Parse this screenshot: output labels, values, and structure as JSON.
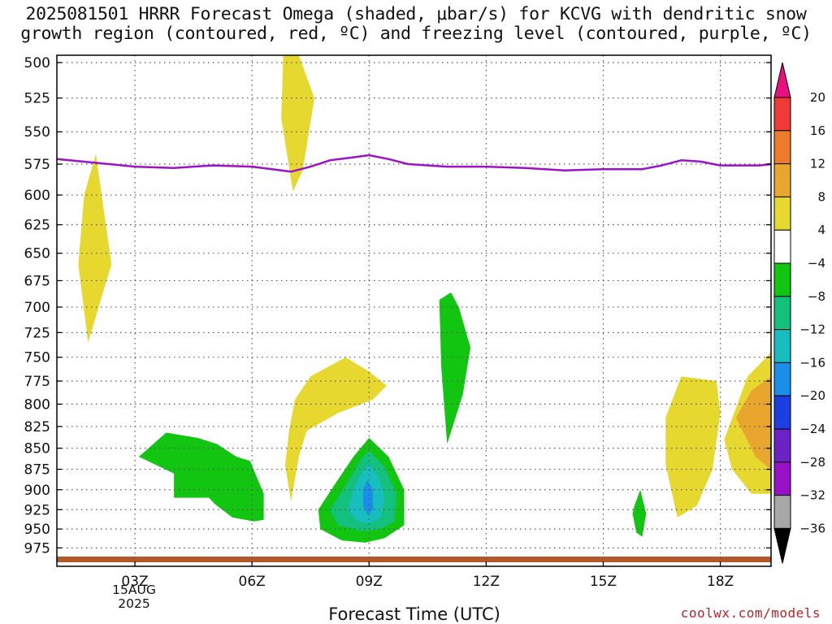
{
  "title_line1": "2025081501 HRRR Forecast Omega (shaded, μbar/s) for KCVG with dendritic snow",
  "title_line2": "growth region (contoured, red, ºC) and freezing level (contoured, purple, ºC)",
  "xlabel": "Forecast Time (UTC)",
  "credit": "coolwx.com/models",
  "date_label": [
    "15AUG",
    "2025"
  ],
  "chart_data": {
    "type": "contour",
    "title": "2025081501 HRRR Forecast Omega (shaded, μbar/s) for KCVG with dendritic snow growth region (contoured, red, ºC) and freezing level (contoured, purple, ºC)",
    "xlabel": "Forecast Time (UTC)",
    "ylabel": "",
    "x_units": "hours UTC on 15 Aug 2025",
    "xlim": [
      1,
      19.3
    ],
    "ylim": [
      1000,
      495
    ],
    "y_scale": "log (pressure, increasing downward)",
    "grid": true,
    "xticks": [
      {
        "x": 3,
        "label": "03Z"
      },
      {
        "x": 6,
        "label": "06Z"
      },
      {
        "x": 9,
        "label": "09Z"
      },
      {
        "x": 12,
        "label": "12Z"
      },
      {
        "x": 15,
        "label": "15Z"
      },
      {
        "x": 18,
        "label": "18Z"
      }
    ],
    "yticks": [
      500,
      525,
      550,
      575,
      600,
      625,
      650,
      675,
      700,
      725,
      750,
      775,
      800,
      825,
      850,
      875,
      900,
      925,
      950,
      975
    ],
    "colorbar": {
      "levels": [
        "20",
        "16",
        "12",
        "8",
        "4",
        "−4",
        "−8",
        "−12",
        "−16",
        "−20",
        "−24",
        "−28",
        "−32",
        "−36"
      ],
      "colors": [
        {
          "range": ">20",
          "color": "#e6117e"
        },
        {
          "range": "16 to 20",
          "color": "#f03a38"
        },
        {
          "range": "12 to 16",
          "color": "#ee7a2b"
        },
        {
          "range": "8 to 12",
          "color": "#e9a62e"
        },
        {
          "range": "4 to 8",
          "color": "#e7d830"
        },
        {
          "range": "-4 to 4",
          "color": "#ffffff"
        },
        {
          "range": "-8 to -4",
          "color": "#12c511"
        },
        {
          "range": "-12 to -8",
          "color": "#13c07c"
        },
        {
          "range": "-16 to -12",
          "color": "#17bdbf"
        },
        {
          "range": "-20 to -16",
          "color": "#1a8ee8"
        },
        {
          "range": "-24 to -20",
          "color": "#1d3ee2"
        },
        {
          "range": "-28 to -24",
          "color": "#6d22c6"
        },
        {
          "range": "-32 to -28",
          "color": "#9a10c6"
        },
        {
          "range": "-36 to -32",
          "color": "#a7a7a7"
        },
        {
          "range": "<-36",
          "color": "#000000"
        }
      ]
    },
    "freezing_level": {
      "color": "#9b12c8",
      "x": [
        1.0,
        2.0,
        3.0,
        4.0,
        5.0,
        6.0,
        7.0,
        7.5,
        8.0,
        8.5,
        9.0,
        9.5,
        10.0,
        11.0,
        12.0,
        13.0,
        14.0,
        15.0,
        16.0,
        16.5,
        17.0,
        17.5,
        18.0,
        18.5,
        19.0,
        19.3
      ],
      "y_hPa": [
        571,
        574,
        577,
        578,
        576,
        577,
        581,
        577,
        572,
        570,
        568,
        571,
        575,
        577,
        577,
        578,
        580,
        579,
        579,
        576,
        572,
        573,
        576,
        576,
        576,
        575
      ]
    },
    "omega_regions": [
      {
        "value_class": "4 to 8",
        "color": "#e7d830",
        "x": [
          2.0,
          2.4,
          1.8,
          1.55,
          1.7,
          2.0
        ],
        "y_hPa": [
          567,
          660,
          735,
          660,
          600,
          567
        ]
      },
      {
        "value_class": "4 to 8",
        "color": "#e7d830",
        "x": [
          6.8,
          7.2,
          7.6,
          7.3,
          7.05,
          6.75,
          6.8
        ],
        "y_hPa": [
          495,
          495,
          525,
          580,
          597,
          540,
          495
        ]
      },
      {
        "value_class": "4 to 8",
        "color": "#e7d830",
        "x": [
          7.1,
          7.5,
          8.4,
          9.0,
          9.45,
          9.1,
          8.2,
          7.4,
          7.2,
          7.0,
          6.85,
          6.95,
          7.1
        ],
        "y_hPa": [
          795,
          770,
          750,
          765,
          780,
          795,
          810,
          830,
          860,
          915,
          870,
          830,
          795
        ]
      },
      {
        "value_class": "4 to 8",
        "color": "#e7d830",
        "x": [
          16.6,
          17.0,
          17.9,
          18.0,
          17.8,
          17.4,
          16.9,
          16.6,
          16.6
        ],
        "y_hPa": [
          815,
          770,
          775,
          810,
          875,
          920,
          935,
          870,
          815
        ]
      },
      {
        "value_class": "4 to 8",
        "color": "#e7d830",
        "x": [
          18.1,
          18.7,
          19.3,
          19.3,
          18.8,
          18.3,
          18.1
        ],
        "y_hPa": [
          840,
          770,
          745,
          905,
          905,
          875,
          840
        ]
      },
      {
        "value_class": "8 to 12",
        "color": "#e9a62e",
        "x": [
          18.4,
          18.8,
          19.3,
          19.3,
          18.9,
          18.4
        ],
        "y_hPa": [
          815,
          785,
          770,
          875,
          860,
          815
        ]
      },
      {
        "value_class": "-8 to -4",
        "color": "#12c511",
        "x": [
          3.1,
          3.8,
          4.6,
          5.1,
          5.6,
          5.95,
          6.3,
          6.3,
          6.05,
          5.5,
          5.05,
          4.9,
          4.0,
          4.0,
          3.1
        ],
        "y_hPa": [
          860,
          832,
          838,
          845,
          860,
          865,
          905,
          938,
          940,
          935,
          918,
          910,
          910,
          880,
          860
        ]
      },
      {
        "value_class": "-8 to -4",
        "color": "#12c511",
        "x": [
          10.8,
          11.1,
          11.3,
          11.6,
          11.4,
          11.0,
          10.85,
          10.8
        ],
        "y_hPa": [
          693,
          686,
          700,
          740,
          790,
          845,
          760,
          693
        ]
      },
      {
        "value_class": "-8 to -4",
        "color": "#12c511",
        "x": [
          15.8,
          15.95,
          16.1,
          16.0,
          15.85,
          15.75,
          15.8
        ],
        "y_hPa": [
          920,
          900,
          930,
          960,
          955,
          930,
          920
        ]
      },
      {
        "value_class": "-8 to -4",
        "color": "#12c511",
        "x": [
          9.0,
          9.5,
          9.9,
          9.9,
          9.4,
          8.9,
          8.3,
          7.75,
          7.7,
          8.1,
          8.6,
          9.0
        ],
        "y_hPa": [
          838,
          860,
          900,
          945,
          962,
          968,
          965,
          950,
          925,
          895,
          860,
          838
        ]
      },
      {
        "value_class": "-12 to -8",
        "color": "#13c07c",
        "x": [
          9.0,
          9.4,
          9.7,
          9.65,
          9.3,
          8.8,
          8.2,
          8.0,
          8.4,
          8.8,
          9.0
        ],
        "y_hPa": [
          853,
          872,
          905,
          940,
          950,
          953,
          945,
          925,
          895,
          862,
          853
        ]
      },
      {
        "value_class": "-16 to -12",
        "color": "#17bdbf",
        "x": [
          9.0,
          9.25,
          9.4,
          9.3,
          9.0,
          8.7,
          8.45,
          8.6,
          8.8,
          9.0
        ],
        "y_hPa": [
          868,
          885,
          910,
          935,
          943,
          940,
          925,
          900,
          880,
          868
        ]
      },
      {
        "value_class": "-20 to -16",
        "color": "#1a8ee8",
        "x": [
          8.95,
          9.1,
          9.1,
          8.95,
          8.85,
          8.85,
          8.95
        ],
        "y_hPa": [
          888,
          900,
          925,
          932,
          920,
          900,
          888
        ]
      }
    ],
    "surface": {
      "color": "#b3582a",
      "y_hPa": 990
    }
  }
}
